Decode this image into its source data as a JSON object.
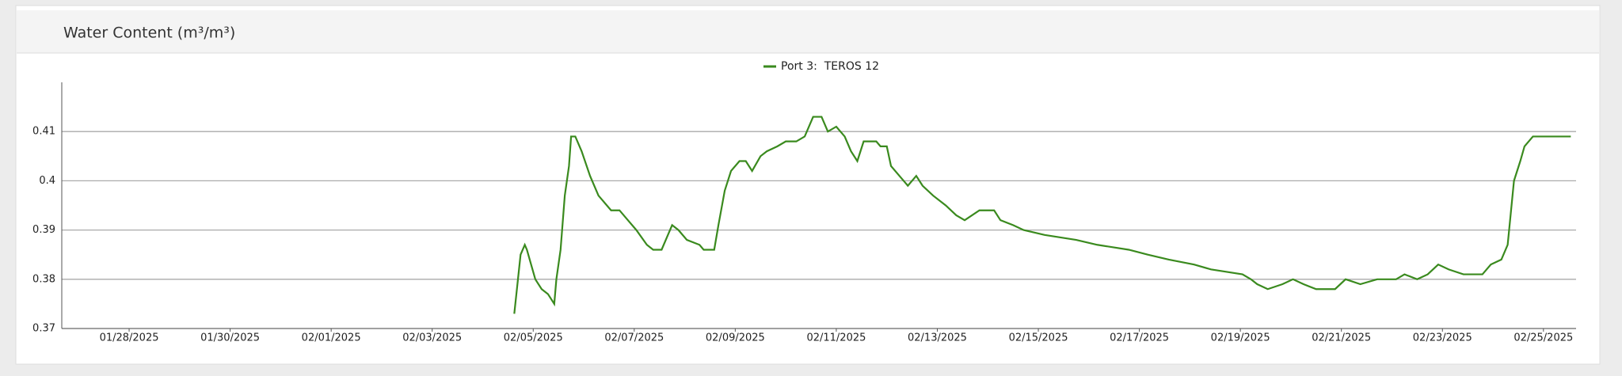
{
  "chart_data": {
    "type": "line",
    "title": "Water Content (m³/m³)",
    "x": [
      "2025-02-04T15:00",
      "2025-02-04T16:00",
      "2025-02-04T18:00",
      "2025-02-04T20:00",
      "2025-02-04T21:00",
      "2025-02-04T23:00",
      "2025-02-05T01:00",
      "2025-02-05T04:00",
      "2025-02-05T07:00",
      "2025-02-05T10:00",
      "2025-02-05T11:00",
      "2025-02-05T13:00",
      "2025-02-05T15:00",
      "2025-02-05T17:00",
      "2025-02-05T18:00",
      "2025-02-05T20:00",
      "2025-02-05T23:00",
      "2025-02-06T03:00",
      "2025-02-06T07:00",
      "2025-02-06T13:00",
      "2025-02-06T17:00",
      "2025-02-06T21:00",
      "2025-02-07T01:00",
      "2025-02-07T06:00",
      "2025-02-07T09:00",
      "2025-02-07T13:00",
      "2025-02-07T16:00",
      "2025-02-07T18:00",
      "2025-02-07T21:00",
      "2025-02-08T01:00",
      "2025-02-08T07:00",
      "2025-02-08T09:00",
      "2025-02-08T14:00",
      "2025-02-08T16:00",
      "2025-02-08T19:00",
      "2025-02-08T22:00",
      "2025-02-09T02:00",
      "2025-02-09T05:00",
      "2025-02-09T08:00",
      "2025-02-09T12:00",
      "2025-02-09T15:00",
      "2025-02-09T20:00",
      "2025-02-10T00:00",
      "2025-02-10T05:00",
      "2025-02-10T09:00",
      "2025-02-10T13:00",
      "2025-02-10T17:00",
      "2025-02-10T20:00",
      "2025-02-11T00:00",
      "2025-02-11T04:00",
      "2025-02-11T07:00",
      "2025-02-11T10:00",
      "2025-02-11T13:00",
      "2025-02-11T19:00",
      "2025-02-11T21:00",
      "2025-02-12T00:00",
      "2025-02-12T02:00",
      "2025-02-12T06:00",
      "2025-02-12T10:00",
      "2025-02-12T14:00",
      "2025-02-12T17:00",
      "2025-02-12T22:00",
      "2025-02-13T04:00",
      "2025-02-13T09:00",
      "2025-02-13T13:00",
      "2025-02-13T20:00",
      "2025-02-14T03:00",
      "2025-02-14T06:00",
      "2025-02-14T12:00",
      "2025-02-14T17:00",
      "2025-02-15T03:00",
      "2025-02-15T18:00",
      "2025-02-16T04:00",
      "2025-02-16T19:00",
      "2025-02-17T04:00",
      "2025-02-17T14:00",
      "2025-02-18T02:00",
      "2025-02-18T10:00",
      "2025-02-19T01:00",
      "2025-02-19T05:00",
      "2025-02-19T08:00",
      "2025-02-19T13:00",
      "2025-02-19T20:00",
      "2025-02-20T01:00",
      "2025-02-20T06:00",
      "2025-02-20T12:00",
      "2025-02-20T21:00",
      "2025-02-21T02:00",
      "2025-02-21T09:00",
      "2025-02-21T17:00",
      "2025-02-22T02:00",
      "2025-02-22T06:00",
      "2025-02-22T12:00",
      "2025-02-22T17:00",
      "2025-02-22T22:00",
      "2025-02-23T03:00",
      "2025-02-23T10:00",
      "2025-02-23T19:00",
      "2025-02-23T23:00",
      "2025-02-24T04:00",
      "2025-02-24T07:00",
      "2025-02-24T10:00",
      "2025-02-24T13:00",
      "2025-02-24T15:00",
      "2025-02-24T19:00",
      "2025-02-25T13:00"
    ],
    "series": [
      {
        "name": "Port 3:  TEROS 12",
        "color": "#3a8a1e",
        "values": [
          0.373,
          0.377,
          0.385,
          0.387,
          0.386,
          0.383,
          0.38,
          0.378,
          0.377,
          0.375,
          0.38,
          0.386,
          0.397,
          0.403,
          0.409,
          0.409,
          0.406,
          0.401,
          0.397,
          0.394,
          0.394,
          0.392,
          0.39,
          0.387,
          0.386,
          0.386,
          0.389,
          0.391,
          0.39,
          0.388,
          0.387,
          0.386,
          0.386,
          0.391,
          0.398,
          0.402,
          0.404,
          0.404,
          0.402,
          0.405,
          0.406,
          0.407,
          0.408,
          0.408,
          0.409,
          0.413,
          0.413,
          0.41,
          0.411,
          0.409,
          0.406,
          0.404,
          0.408,
          0.408,
          0.407,
          0.407,
          0.403,
          0.401,
          0.399,
          0.401,
          0.399,
          0.397,
          0.395,
          0.393,
          0.392,
          0.394,
          0.394,
          0.392,
          0.391,
          0.39,
          0.389,
          0.388,
          0.387,
          0.386,
          0.385,
          0.384,
          0.383,
          0.382,
          0.381,
          0.38,
          0.379,
          0.378,
          0.379,
          0.38,
          0.379,
          0.378,
          0.378,
          0.38,
          0.379,
          0.38,
          0.38,
          0.381,
          0.38,
          0.381,
          0.383,
          0.382,
          0.381,
          0.381,
          0.383,
          0.384,
          0.387,
          0.4,
          0.404,
          0.407,
          0.409,
          0.409
        ]
      }
    ],
    "xlim": [
      "2025-01-26T16:00",
      "2025-02-25T15:30"
    ],
    "xticks": [
      {
        "value": "2025-01-28T00:00",
        "label": "01/28/2025"
      },
      {
        "value": "2025-01-30T00:00",
        "label": "01/30/2025"
      },
      {
        "value": "2025-02-01T00:00",
        "label": "02/01/2025"
      },
      {
        "value": "2025-02-03T00:00",
        "label": "02/03/2025"
      },
      {
        "value": "2025-02-05T00:00",
        "label": "02/05/2025"
      },
      {
        "value": "2025-02-07T00:00",
        "label": "02/07/2025"
      },
      {
        "value": "2025-02-09T00:00",
        "label": "02/09/2025"
      },
      {
        "value": "2025-02-11T00:00",
        "label": "02/11/2025"
      },
      {
        "value": "2025-02-13T00:00",
        "label": "02/13/2025"
      },
      {
        "value": "2025-02-15T00:00",
        "label": "02/15/2025"
      },
      {
        "value": "2025-02-17T00:00",
        "label": "02/17/2025"
      },
      {
        "value": "2025-02-19T00:00",
        "label": "02/19/2025"
      },
      {
        "value": "2025-02-21T00:00",
        "label": "02/21/2025"
      },
      {
        "value": "2025-02-23T00:00",
        "label": "02/23/2025"
      },
      {
        "value": "2025-02-25T00:00",
        "label": "02/25/2025"
      }
    ],
    "ylim": [
      0.37,
      0.42
    ],
    "yticks": [
      0.37,
      0.38,
      0.39,
      0.4,
      0.41
    ],
    "grid": true
  }
}
